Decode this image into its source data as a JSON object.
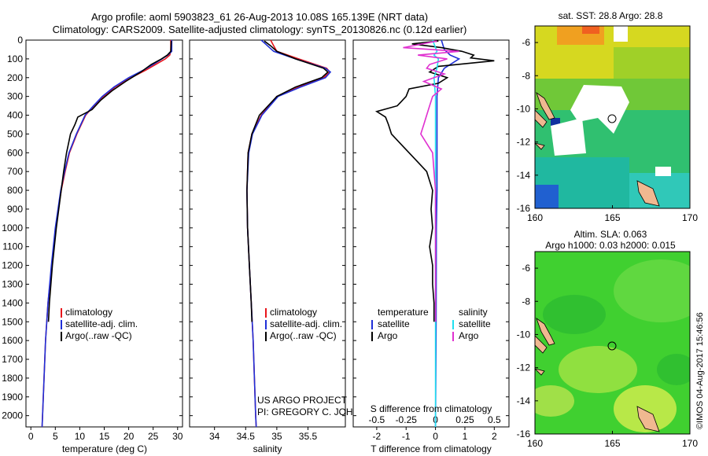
{
  "header": {
    "line1": "Argo profile: aoml 5903823_61 26-Aug-2013 10.08S 165.139E (NRT data)",
    "line2": "Climatology: CARS2009. Satellite-adjusted climatology: synTS_20130826.nc (0.12d earlier)"
  },
  "colors": {
    "climatology": "#e8141a",
    "satellite": "#1f2fd8",
    "argo": "#000000",
    "argo_salinity": "#e030d0",
    "satellite_salinity": "#20e0f0"
  },
  "depth_ticks": [
    0,
    100,
    200,
    300,
    400,
    500,
    600,
    700,
    800,
    900,
    1000,
    1100,
    1200,
    1300,
    1400,
    1500,
    1600,
    1700,
    1800,
    1900,
    2000
  ],
  "chart_data": [
    {
      "type": "line",
      "xlabel": "temperature (deg C)",
      "xlim": [
        -1,
        31
      ],
      "ylim": [
        2060,
        0
      ],
      "xticks": [
        0,
        5,
        10,
        15,
        20,
        25,
        30
      ],
      "legend_placement": "lower-left",
      "series": [
        {
          "name": "climatology",
          "y": [
            0,
            60,
            80,
            100,
            130,
            160,
            200,
            250,
            300,
            350,
            400,
            500,
            600,
            700,
            800,
            1000,
            1200,
            1400,
            1600,
            1800,
            2000,
            2060
          ],
          "x": [
            28.6,
            28.6,
            28.4,
            27.5,
            25.5,
            23.5,
            20.5,
            17.2,
            14.8,
            12.9,
            11.2,
            9.4,
            7.9,
            7.0,
            6.2,
            5.1,
            4.3,
            3.5,
            3.0,
            2.7,
            2.4,
            2.3
          ]
        },
        {
          "name": "satellite-adj. clim.",
          "y": [
            0,
            60,
            80,
            100,
            130,
            160,
            200,
            250,
            300,
            350,
            400,
            500,
            600,
            700,
            800,
            1000,
            1200,
            1400,
            1600,
            1800,
            2000,
            2060
          ],
          "x": [
            28.8,
            28.8,
            28.0,
            26.8,
            25.0,
            23.0,
            20.0,
            17.0,
            14.6,
            12.8,
            11.1,
            9.3,
            7.8,
            6.9,
            6.1,
            5.0,
            4.2,
            3.5,
            3.0,
            2.7,
            2.4,
            2.3
          ]
        },
        {
          "name": "Argo(..raw -QC)",
          "y": [
            5,
            60,
            80,
            100,
            130,
            170,
            220,
            270,
            320,
            370,
            410,
            450,
            500,
            550,
            600,
            700,
            800,
            900,
            1000,
            1100,
            1200,
            1300,
            1400,
            1500
          ],
          "x": [
            28.7,
            28.6,
            27.9,
            26.7,
            24.6,
            22.5,
            19.4,
            16.6,
            14.3,
            12.5,
            9.6,
            9.0,
            8.1,
            7.7,
            7.3,
            6.7,
            6.2,
            5.7,
            5.2,
            4.8,
            4.4,
            4.1,
            3.8,
            3.6
          ]
        }
      ],
      "legend": [
        "climatology",
        "satellite-adj. clim.",
        "Argo(..raw -QC)"
      ]
    },
    {
      "type": "line",
      "xlabel": "salinity",
      "xlim": [
        33.6,
        36.1
      ],
      "ylim": [
        2060,
        0
      ],
      "xticks": [
        34,
        34.5,
        35,
        35.5
      ],
      "legend_placement": "lower-left",
      "annotation": [
        "US ARGO PROJECT",
        "PI: GREGORY C. JOHNSON"
      ],
      "series": [
        {
          "name": "climatology",
          "y": [
            0,
            30,
            60,
            100,
            150,
            170,
            200,
            250,
            300,
            400,
            500,
            600,
            800,
            1000,
            1200,
            1400,
            1600,
            1800,
            2000,
            2060
          ],
          "x": [
            34.9,
            34.95,
            35.0,
            35.35,
            35.8,
            35.85,
            35.75,
            35.35,
            35.0,
            34.75,
            34.6,
            34.54,
            34.52,
            34.53,
            34.56,
            34.59,
            34.62,
            34.64,
            34.66,
            34.67
          ]
        },
        {
          "name": "satellite-adj. clim.",
          "y": [
            0,
            30,
            60,
            100,
            150,
            170,
            200,
            250,
            300,
            400,
            500,
            600,
            800,
            1000,
            1200,
            1400,
            1600,
            1800,
            2000,
            2060
          ],
          "x": [
            34.75,
            34.85,
            34.95,
            35.3,
            35.78,
            35.86,
            35.78,
            35.38,
            35.02,
            34.76,
            34.61,
            34.55,
            34.52,
            34.53,
            34.56,
            34.59,
            34.62,
            34.64,
            34.66,
            34.67
          ]
        },
        {
          "name": "Argo(..raw -QC)",
          "y": [
            5,
            30,
            60,
            100,
            150,
            170,
            200,
            250,
            300,
            400,
            500,
            600,
            800,
            1000,
            1200,
            1400,
            1500
          ],
          "x": [
            34.8,
            34.9,
            35.0,
            35.3,
            35.75,
            35.82,
            35.72,
            35.3,
            35.0,
            34.72,
            34.6,
            34.54,
            34.52,
            34.53,
            34.56,
            34.59,
            34.6
          ]
        }
      ],
      "legend": [
        "climatology",
        "satellite-adj. clim.",
        "Argo(..raw -QC)"
      ]
    },
    {
      "type": "line",
      "xlabel_bottom": "T difference from climatology",
      "xlabel_top": "S difference from climatology",
      "xlim": [
        -2.8,
        2.5
      ],
      "ylim": [
        2060,
        0
      ],
      "xticks": [
        -2,
        -1,
        0,
        1,
        2
      ],
      "sticks": [
        "-0.5",
        "-0.25",
        "0",
        "0.25",
        "0.5"
      ],
      "legend_headers": [
        "temperature",
        "salinity"
      ],
      "legend_placement": "lower-middle",
      "series": [
        {
          "name": "satellite",
          "y": [
            0,
            50,
            80,
            100,
            150,
            200,
            300,
            500,
            800,
            1000,
            1500,
            2060
          ],
          "x": [
            0.2,
            0.3,
            0.5,
            0.8,
            0.3,
            0.1,
            0.05,
            0.05,
            0.05,
            0.03,
            0.02,
            0.0
          ]
        },
        {
          "name": "Argo",
          "y": [
            5,
            20,
            40,
            60,
            80,
            95,
            110,
            140,
            170,
            200,
            230,
            260,
            300,
            350,
            380,
            410,
            450,
            500,
            550,
            600,
            650,
            700,
            800,
            900,
            1000,
            1100,
            1200,
            1300,
            1400,
            1500
          ],
          "x": [
            0.1,
            -0.8,
            0.2,
            0.9,
            1.3,
            1.2,
            2.0,
            0.1,
            -0.2,
            0.4,
            0.1,
            -0.9,
            -1.0,
            -1.3,
            -2.0,
            -1.7,
            -1.6,
            -1.5,
            -1.2,
            -0.9,
            -0.6,
            -0.3,
            -0.1,
            -0.15,
            -0.1,
            -0.2,
            -0.1,
            -0.1,
            -0.05,
            -0.05
          ]
        },
        {
          "name": "satellite salinity",
          "y": [
            0,
            60,
            80,
            100,
            150,
            200,
            300,
            500,
            800,
            1200,
            1600,
            2060
          ],
          "x": [
            -0.1,
            0.05,
            -0.05,
            0.1,
            0.05,
            -0.05,
            0.0,
            0.0,
            0.0,
            0.0,
            0.0,
            0.0
          ]
        },
        {
          "name": "Argo salinity",
          "y": [
            5,
            40,
            60,
            80,
            100,
            130,
            150,
            180,
            220,
            260,
            300,
            350,
            400,
            450,
            500,
            550,
            600,
            700,
            800,
            1000,
            1200,
            1500
          ],
          "x": [
            0.05,
            -1.1,
            0.8,
            -0.6,
            0.4,
            -0.2,
            -0.3,
            0.3,
            -0.4,
            0.2,
            -0.1,
            -0.2,
            -0.3,
            -0.4,
            -0.5,
            -0.3,
            -0.1,
            -0.05,
            0.0,
            0.0,
            0.0,
            0.0
          ]
        }
      ],
      "legend_temperature": [
        "satellite",
        "Argo"
      ],
      "legend_salinity": [
        "satellite",
        "Argo"
      ]
    },
    {
      "type": "heatmap",
      "title": "sat. SST: 28.8 Argo: 28.8",
      "xlim": [
        160,
        170
      ],
      "ylim": [
        -16,
        -5
      ],
      "xticks": [
        160,
        165,
        170
      ],
      "yticks": [
        -6,
        -8,
        -10,
        -12,
        -14,
        -16
      ],
      "profile_marker": {
        "lon": 165.139,
        "lat": -10.08
      }
    },
    {
      "type": "heatmap",
      "title": "Altim. SLA: 0.063",
      "subtitle": "Argo h1000: 0.03 h2000: 0.015",
      "xlim": [
        160,
        170
      ],
      "ylim": [
        -16,
        -5
      ],
      "xticks": [
        160,
        165,
        170
      ],
      "yticks": [
        -6,
        -8,
        -10,
        -12,
        -14,
        -16
      ],
      "profile_marker": {
        "lon": 165.139,
        "lat": -10.08
      }
    }
  ],
  "footer_stamp": "©IMOS 04-Aug-2017 15:46:56"
}
